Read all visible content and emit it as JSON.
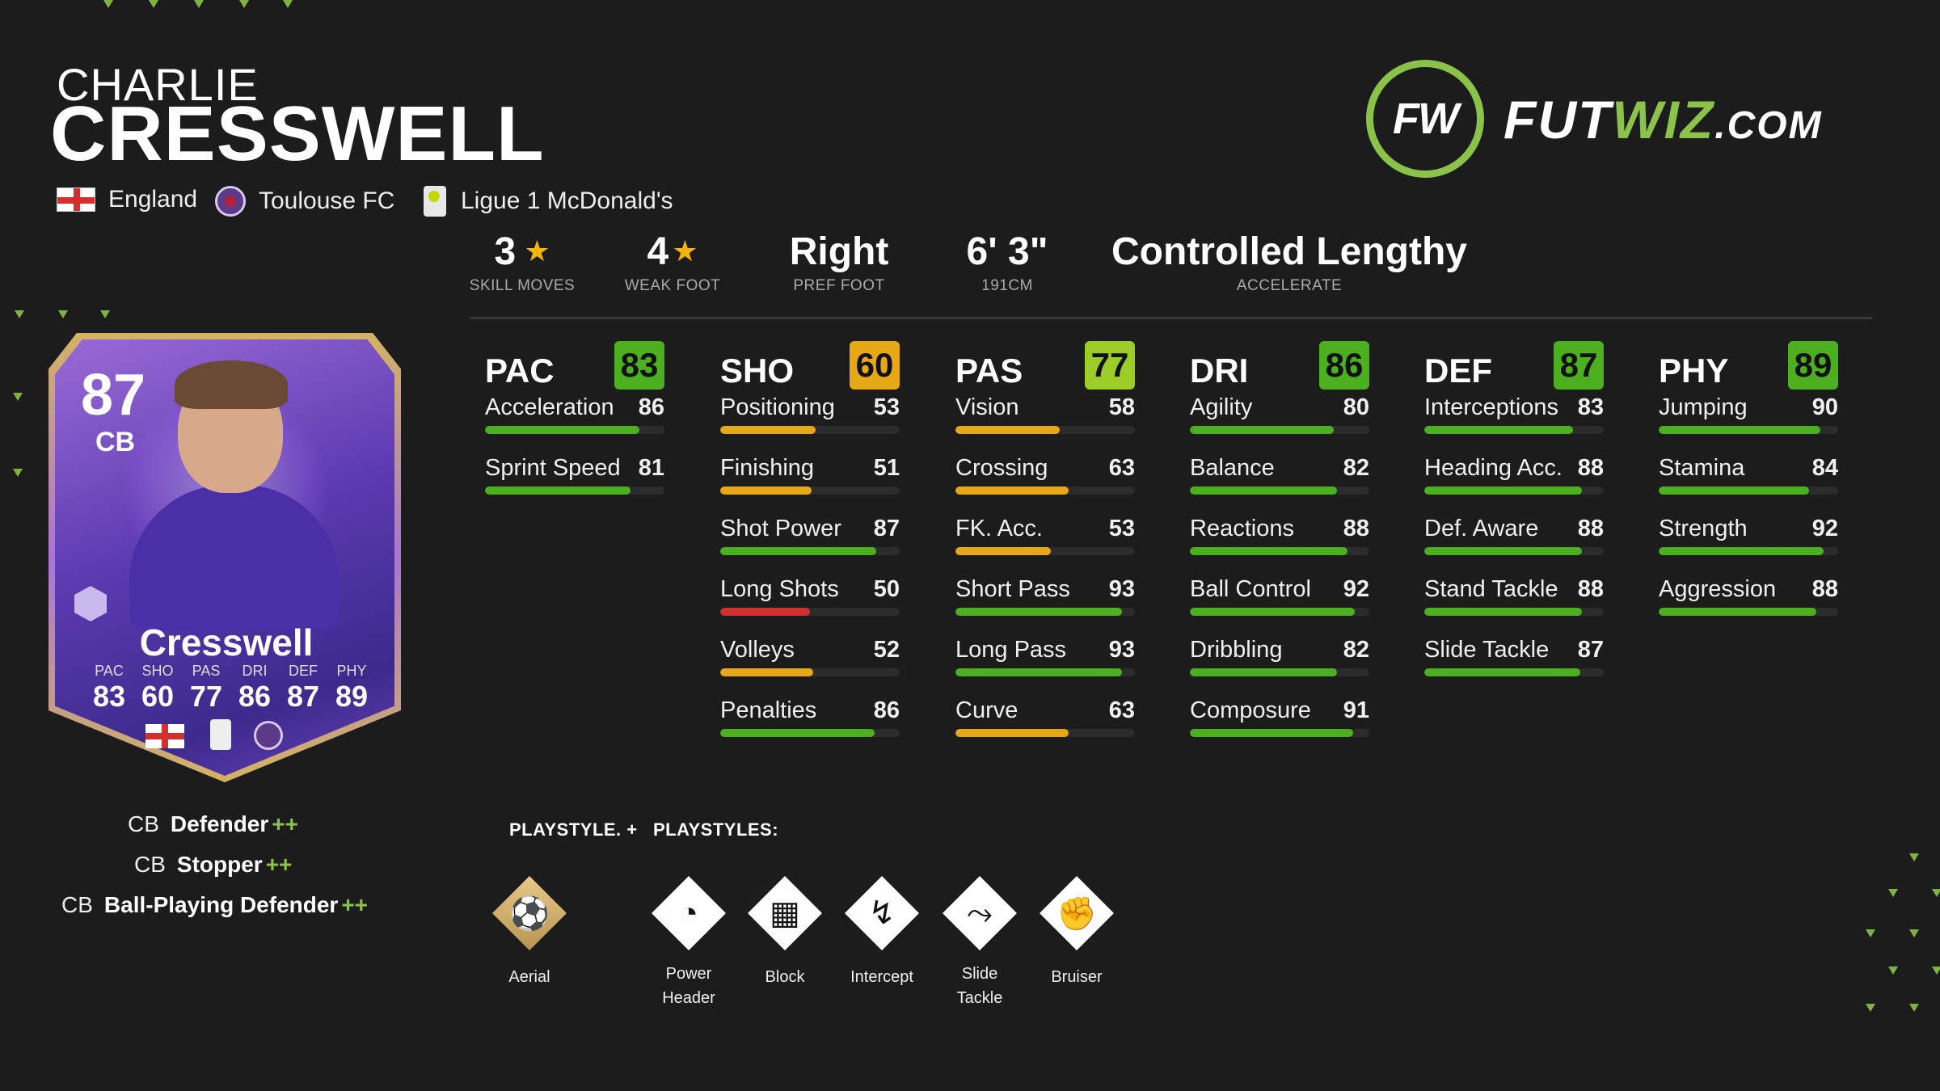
{
  "player": {
    "first_name": "CHARLIE",
    "last_name": "CRESSWELL",
    "nation": "England",
    "club": "Toulouse FC",
    "league": "Ligue 1 McDonald's"
  },
  "logo": {
    "ring_text": "FW",
    "text_a": "FUT",
    "text_b": "WIZ",
    "text_c": ".COM"
  },
  "info": {
    "skill_moves": {
      "value": "3",
      "label": "SKILL MOVES"
    },
    "weak_foot": {
      "value": "4",
      "label": "WEAK FOOT"
    },
    "pref_foot": {
      "value": "Right",
      "label": "PREF FOOT"
    },
    "height": {
      "value": "6' 3\"",
      "label": "191CM"
    },
    "accelerate": {
      "value": "Controlled Lengthy",
      "label": "ACCELERATE"
    }
  },
  "card": {
    "rating": "87",
    "position": "CB",
    "name": "Cresswell",
    "stats": [
      {
        "k": "PAC",
        "n": "83"
      },
      {
        "k": "SHO",
        "n": "60"
      },
      {
        "k": "PAS",
        "n": "77"
      },
      {
        "k": "DRI",
        "n": "86"
      },
      {
        "k": "DEF",
        "n": "87"
      },
      {
        "k": "PHY",
        "n": "89"
      }
    ]
  },
  "roles": [
    {
      "pos": "CB",
      "name": "Defender",
      "plus": "++"
    },
    {
      "pos": "CB",
      "name": "Stopper",
      "plus": "++"
    },
    {
      "pos": "CB",
      "name": "Ball-Playing Defender",
      "plus": "++"
    }
  ],
  "colors": {
    "green": "#4caf20",
    "lime": "#9ccc28",
    "yellow": "#e6a817",
    "red": "#d32f2f",
    "accent": "#8bc34a"
  },
  "stats": [
    {
      "cat": "PAC",
      "value": "83",
      "rows": [
        {
          "label": "Acceleration",
          "value": "86"
        },
        {
          "label": "Sprint Speed",
          "value": "81"
        }
      ]
    },
    {
      "cat": "SHO",
      "value": "60",
      "rows": [
        {
          "label": "Positioning",
          "value": "53"
        },
        {
          "label": "Finishing",
          "value": "51"
        },
        {
          "label": "Shot Power",
          "value": "87"
        },
        {
          "label": "Long Shots",
          "value": "50"
        },
        {
          "label": "Volleys",
          "value": "52"
        },
        {
          "label": "Penalties",
          "value": "86"
        }
      ]
    },
    {
      "cat": "PAS",
      "value": "77",
      "rows": [
        {
          "label": "Vision",
          "value": "58"
        },
        {
          "label": "Crossing",
          "value": "63"
        },
        {
          "label": "FK. Acc.",
          "value": "53"
        },
        {
          "label": "Short Pass",
          "value": "93"
        },
        {
          "label": "Long Pass",
          "value": "93"
        },
        {
          "label": "Curve",
          "value": "63"
        }
      ]
    },
    {
      "cat": "DRI",
      "value": "86",
      "rows": [
        {
          "label": "Agility",
          "value": "80"
        },
        {
          "label": "Balance",
          "value": "82"
        },
        {
          "label": "Reactions",
          "value": "88"
        },
        {
          "label": "Ball Control",
          "value": "92"
        },
        {
          "label": "Dribbling",
          "value": "82"
        },
        {
          "label": "Composure",
          "value": "91"
        }
      ]
    },
    {
      "cat": "DEF",
      "value": "87",
      "rows": [
        {
          "label": "Interceptions",
          "value": "83"
        },
        {
          "label": "Heading Acc.",
          "value": "88"
        },
        {
          "label": "Def. Aware",
          "value": "88"
        },
        {
          "label": "Stand Tackle",
          "value": "88"
        },
        {
          "label": "Slide Tackle",
          "value": "87"
        }
      ]
    },
    {
      "cat": "PHY",
      "value": "89",
      "rows": [
        {
          "label": "Jumping",
          "value": "90"
        },
        {
          "label": "Stamina",
          "value": "84"
        },
        {
          "label": "Strength",
          "value": "92"
        },
        {
          "label": "Aggression",
          "value": "88"
        }
      ]
    }
  ],
  "playstyles": {
    "label_plus": "PLAYSTYLE. +",
    "label": "PLAYSTYLES:",
    "plus_items": [
      {
        "name": "Aerial",
        "icon": "aerial-icon"
      }
    ],
    "items": [
      {
        "name": "Power Header",
        "icon": "power-header-icon"
      },
      {
        "name": "Block",
        "icon": "block-icon"
      },
      {
        "name": "Intercept",
        "icon": "intercept-icon"
      },
      {
        "name": "Slide Tackle",
        "icon": "slide-tackle-icon"
      },
      {
        "name": "Bruiser",
        "icon": "bruiser-icon"
      }
    ]
  }
}
